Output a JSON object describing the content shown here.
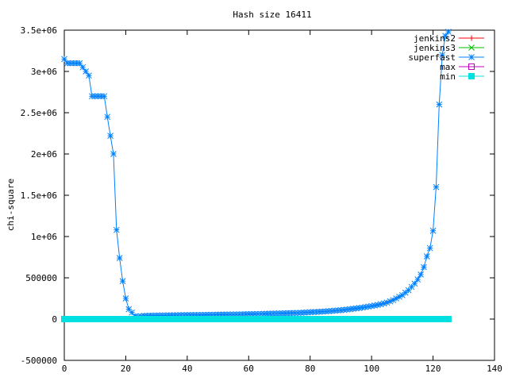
{
  "chart_data": {
    "type": "line",
    "title": "Hash size 16411",
    "xlabel": "",
    "ylabel": "chi-square",
    "xlim": [
      0,
      140
    ],
    "ylim": [
      -500000,
      3500000
    ],
    "xticks": [
      0,
      20,
      40,
      60,
      80,
      100,
      120,
      140
    ],
    "yticks": [
      -500000,
      0,
      500000,
      1000000,
      1500000,
      2000000,
      2500000,
      3000000,
      3500000
    ],
    "xtick_labels": [
      "0",
      "20",
      "40",
      "60",
      "80",
      "100",
      "120",
      "140"
    ],
    "ytick_labels": [
      "-500000",
      "0",
      "500000",
      "1e+06",
      "1.5e+06",
      "2e+06",
      "2.5e+06",
      "3e+06",
      "3.5e+06"
    ],
    "grid": false,
    "legend_position": "top-right",
    "series": [
      {
        "name": "jenkins2",
        "color": "#ff0000",
        "marker": "plus",
        "x": [],
        "y": []
      },
      {
        "name": "jenkins3",
        "color": "#00c000",
        "marker": "cross",
        "x": [],
        "y": []
      },
      {
        "name": "superfast",
        "color": "#0080ff",
        "marker": "star",
        "x": [
          0,
          1,
          2,
          3,
          4,
          5,
          6,
          7,
          8,
          9,
          10,
          11,
          12,
          13,
          14,
          15,
          16,
          17,
          18,
          19,
          20,
          21,
          22,
          23,
          24,
          25,
          26,
          27,
          28,
          29,
          30,
          31,
          32,
          33,
          34,
          35,
          36,
          37,
          38,
          39,
          40,
          41,
          42,
          43,
          44,
          45,
          46,
          47,
          48,
          49,
          50,
          51,
          52,
          53,
          54,
          55,
          56,
          57,
          58,
          59,
          60,
          61,
          62,
          63,
          64,
          65,
          66,
          67,
          68,
          69,
          70,
          71,
          72,
          73,
          74,
          75,
          76,
          77,
          78,
          79,
          80,
          81,
          82,
          83,
          84,
          85,
          86,
          87,
          88,
          89,
          90,
          91,
          92,
          93,
          94,
          95,
          96,
          97,
          98,
          99,
          100,
          101,
          102,
          103,
          104,
          105,
          106,
          107,
          108,
          109,
          110,
          111,
          112,
          113,
          114,
          115,
          116,
          117,
          118,
          119,
          120,
          121,
          122,
          123,
          124,
          125
        ],
        "y": [
          3150000,
          3100000,
          3100000,
          3100000,
          3100000,
          3100000,
          3050000,
          3000000,
          2950000,
          2700000,
          2700000,
          2700000,
          2700000,
          2700000,
          2450000,
          2220000,
          2000000,
          1080000,
          740000,
          460000,
          250000,
          120000,
          80000,
          35000,
          30000,
          35000,
          40000,
          40000,
          42000,
          42000,
          44000,
          44000,
          45000,
          45000,
          46000,
          46000,
          47000,
          47000,
          48000,
          48000,
          49000,
          49000,
          50000,
          50000,
          51000,
          51000,
          52000,
          52000,
          53000,
          53000,
          54000,
          54000,
          55000,
          55000,
          56000,
          56000,
          57000,
          57000,
          58000,
          59000,
          60000,
          60000,
          61000,
          62000,
          63000,
          64000,
          65000,
          66000,
          67000,
          68000,
          69000,
          70000,
          71000,
          72000,
          73000,
          74000,
          75000,
          77000,
          79000,
          81000,
          83000,
          85000,
          87000,
          89000,
          91000,
          93000,
          96000,
          99000,
          102000,
          105000,
          108000,
          112000,
          116000,
          120000,
          125000,
          130000,
          135000,
          140000,
          146000,
          152000,
          158000,
          165000,
          172000,
          180000,
          190000,
          200000,
          215000,
          230000,
          250000,
          270000,
          290000,
          320000,
          350000,
          390000,
          430000,
          480000,
          540000,
          630000,
          760000,
          860000,
          1070000,
          1600000,
          2600000,
          3200000,
          3430000,
          3480000
        ]
      },
      {
        "name": "max",
        "color": "#c000c0",
        "marker": "square",
        "x": [],
        "y": []
      },
      {
        "name": "min",
        "color": "#00e0e0",
        "marker": "filled-square",
        "x": [
          0,
          1,
          2,
          3,
          4,
          5,
          6,
          7,
          8,
          9,
          10,
          11,
          12,
          13,
          14,
          15,
          16,
          17,
          18,
          19,
          20,
          21,
          22,
          23,
          24,
          25,
          26,
          27,
          28,
          29,
          30,
          31,
          32,
          33,
          34,
          35,
          36,
          37,
          38,
          39,
          40,
          41,
          42,
          43,
          44,
          45,
          46,
          47,
          48,
          49,
          50,
          51,
          52,
          53,
          54,
          55,
          56,
          57,
          58,
          59,
          60,
          61,
          62,
          63,
          64,
          65,
          66,
          67,
          68,
          69,
          70,
          71,
          72,
          73,
          74,
          75,
          76,
          77,
          78,
          79,
          80,
          81,
          82,
          83,
          84,
          85,
          86,
          87,
          88,
          89,
          90,
          91,
          92,
          93,
          94,
          95,
          96,
          97,
          98,
          99,
          100,
          101,
          102,
          103,
          104,
          105,
          106,
          107,
          108,
          109,
          110,
          111,
          112,
          113,
          114,
          115,
          116,
          117,
          118,
          119,
          120,
          121,
          122,
          123,
          124,
          125
        ],
        "y": [
          0,
          0,
          0,
          0,
          0,
          0,
          0,
          0,
          0,
          0,
          0,
          0,
          0,
          0,
          0,
          0,
          0,
          0,
          0,
          0,
          0,
          0,
          0,
          0,
          0,
          0,
          0,
          0,
          0,
          0,
          0,
          0,
          0,
          0,
          0,
          0,
          0,
          0,
          0,
          0,
          0,
          0,
          0,
          0,
          0,
          0,
          0,
          0,
          0,
          0,
          0,
          0,
          0,
          0,
          0,
          0,
          0,
          0,
          0,
          0,
          0,
          0,
          0,
          0,
          0,
          0,
          0,
          0,
          0,
          0,
          0,
          0,
          0,
          0,
          0,
          0,
          0,
          0,
          0,
          0,
          0,
          0,
          0,
          0,
          0,
          0,
          0,
          0,
          0,
          0,
          0,
          0,
          0,
          0,
          0,
          0,
          0,
          0,
          0,
          0,
          0,
          0,
          0,
          0,
          0,
          0,
          0,
          0,
          0,
          0,
          0,
          0,
          0,
          0,
          0,
          0,
          0,
          0,
          0,
          0,
          0,
          0,
          0,
          0,
          0,
          0
        ]
      }
    ]
  }
}
